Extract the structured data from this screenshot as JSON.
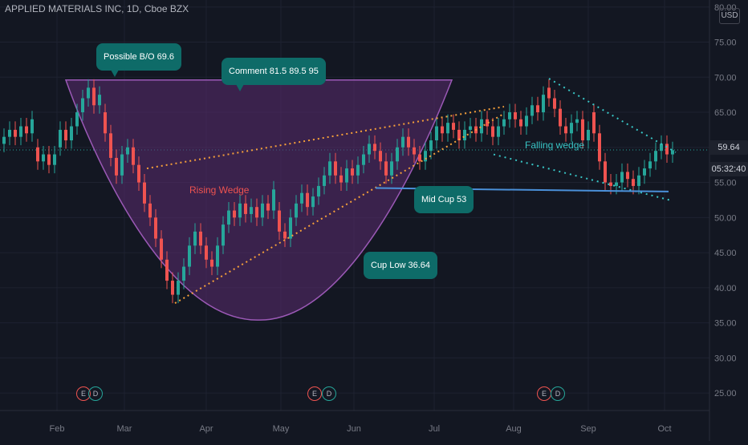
{
  "chart_title": "APPLIED MATERIALS INC, 1D, Cboe BZX",
  "currency": "USD",
  "last_price": "59.64",
  "countdown": "05:32:40",
  "chart_data": {
    "type": "candlestick",
    "y_ticks": [
      "80.00",
      "75.00",
      "70.00",
      "65.00",
      "60.00",
      "55.00",
      "50.00",
      "45.00",
      "40.00",
      "35.00",
      "30.00",
      "25.00"
    ],
    "ylim": [
      22.5,
      81
    ],
    "x_ticks": [
      "Feb",
      "Mar",
      "Apr",
      "May",
      "Jun",
      "Jul",
      "Aug",
      "Sep",
      "Oct"
    ],
    "candles_approx": [
      {
        "x": 5,
        "o": 60.5,
        "c": 61.5
      },
      {
        "x": 12,
        "o": 61.5,
        "c": 62.5
      },
      {
        "x": 19,
        "o": 62.5,
        "c": 61.5
      },
      {
        "x": 26,
        "o": 61.5,
        "c": 63
      },
      {
        "x": 33,
        "o": 63,
        "c": 62
      },
      {
        "x": 40,
        "o": 62,
        "c": 64
      },
      {
        "x": 47,
        "o": 60,
        "c": 58
      },
      {
        "x": 54,
        "o": 58,
        "c": 59
      },
      {
        "x": 61,
        "o": 59,
        "c": 57.5
      },
      {
        "x": 68,
        "o": 57.5,
        "c": 59
      },
      {
        "x": 75,
        "o": 60,
        "c": 62.5
      },
      {
        "x": 82,
        "o": 62.5,
        "c": 61
      },
      {
        "x": 89,
        "o": 61,
        "c": 63
      },
      {
        "x": 96,
        "o": 63,
        "c": 65
      },
      {
        "x": 103,
        "o": 65,
        "c": 67
      },
      {
        "x": 110,
        "o": 67,
        "c": 68.5
      },
      {
        "x": 117,
        "o": 68.5,
        "c": 66
      },
      {
        "x": 124,
        "o": 66,
        "c": 67.5
      },
      {
        "x": 131,
        "o": 65,
        "c": 62
      },
      {
        "x": 138,
        "o": 62,
        "c": 58.5
      },
      {
        "x": 145,
        "o": 58.5,
        "c": 56
      },
      {
        "x": 152,
        "o": 56,
        "c": 59
      },
      {
        "x": 159,
        "o": 59,
        "c": 60
      },
      {
        "x": 166,
        "o": 60,
        "c": 57.5
      },
      {
        "x": 173,
        "o": 57.5,
        "c": 55
      },
      {
        "x": 180,
        "o": 55,
        "c": 52
      },
      {
        "x": 187,
        "o": 52,
        "c": 50
      },
      {
        "x": 194,
        "o": 50,
        "c": 47
      },
      {
        "x": 201,
        "o": 47,
        "c": 44
      },
      {
        "x": 208,
        "o": 44,
        "c": 41
      },
      {
        "x": 215,
        "o": 41,
        "c": 39
      },
      {
        "x": 222,
        "o": 39,
        "c": 41
      },
      {
        "x": 229,
        "o": 41,
        "c": 43
      },
      {
        "x": 236,
        "o": 43,
        "c": 46
      },
      {
        "x": 243,
        "o": 46,
        "c": 48
      },
      {
        "x": 250,
        "o": 48,
        "c": 46
      },
      {
        "x": 257,
        "o": 46,
        "c": 44
      },
      {
        "x": 264,
        "o": 44,
        "c": 43
      },
      {
        "x": 271,
        "o": 43,
        "c": 46
      },
      {
        "x": 278,
        "o": 46,
        "c": 49
      },
      {
        "x": 285,
        "o": 49,
        "c": 51
      },
      {
        "x": 292,
        "o": 51,
        "c": 50
      },
      {
        "x": 299,
        "o": 50,
        "c": 52
      },
      {
        "x": 306,
        "o": 52,
        "c": 50.5
      },
      {
        "x": 313,
        "o": 50.5,
        "c": 51.5
      },
      {
        "x": 320,
        "o": 51.5,
        "c": 50
      },
      {
        "x": 327,
        "o": 50,
        "c": 52
      },
      {
        "x": 334,
        "o": 52,
        "c": 51
      },
      {
        "x": 341,
        "o": 51,
        "c": 54
      },
      {
        "x": 348,
        "o": 51,
        "c": 48
      },
      {
        "x": 355,
        "o": 48,
        "c": 47
      },
      {
        "x": 362,
        "o": 47,
        "c": 50
      },
      {
        "x": 369,
        "o": 50,
        "c": 52
      },
      {
        "x": 376,
        "o": 52,
        "c": 53.5
      },
      {
        "x": 383,
        "o": 53.5,
        "c": 51.5
      },
      {
        "x": 390,
        "o": 51.5,
        "c": 53
      },
      {
        "x": 397,
        "o": 53,
        "c": 54.5
      },
      {
        "x": 404,
        "o": 54.5,
        "c": 56
      },
      {
        "x": 411,
        "o": 56,
        "c": 58
      },
      {
        "x": 418,
        "o": 58,
        "c": 56
      },
      {
        "x": 425,
        "o": 56,
        "c": 55
      },
      {
        "x": 432,
        "o": 55,
        "c": 57
      },
      {
        "x": 439,
        "o": 57,
        "c": 56
      },
      {
        "x": 446,
        "o": 56,
        "c": 57.5
      },
      {
        "x": 453,
        "o": 57.5,
        "c": 59
      },
      {
        "x": 460,
        "o": 59,
        "c": 60.5
      },
      {
        "x": 467,
        "o": 60.5,
        "c": 59.5
      },
      {
        "x": 474,
        "o": 59.5,
        "c": 58
      },
      {
        "x": 481,
        "o": 58,
        "c": 56
      },
      {
        "x": 488,
        "o": 56,
        "c": 58
      },
      {
        "x": 495,
        "o": 58,
        "c": 60
      },
      {
        "x": 502,
        "o": 60,
        "c": 61.5
      },
      {
        "x": 509,
        "o": 61.5,
        "c": 60
      },
      {
        "x": 516,
        "o": 60,
        "c": 59
      },
      {
        "x": 523,
        "o": 59,
        "c": 58
      },
      {
        "x": 530,
        "o": 58,
        "c": 59.5
      },
      {
        "x": 537,
        "o": 59.5,
        "c": 61
      },
      {
        "x": 544,
        "o": 61,
        "c": 63
      },
      {
        "x": 551,
        "o": 63,
        "c": 62
      },
      {
        "x": 558,
        "o": 62,
        "c": 63.5
      },
      {
        "x": 565,
        "o": 63.5,
        "c": 62.5
      },
      {
        "x": 572,
        "o": 62.5,
        "c": 61
      },
      {
        "x": 579,
        "o": 61,
        "c": 62.5
      },
      {
        "x": 586,
        "o": 62.5,
        "c": 63
      },
      {
        "x": 593,
        "o": 63,
        "c": 62
      },
      {
        "x": 600,
        "o": 62,
        "c": 64
      },
      {
        "x": 607,
        "o": 64,
        "c": 63
      },
      {
        "x": 614,
        "o": 63,
        "c": 61.5
      },
      {
        "x": 621,
        "o": 61.5,
        "c": 63
      },
      {
        "x": 628,
        "o": 63,
        "c": 64
      },
      {
        "x": 635,
        "o": 64,
        "c": 65
      },
      {
        "x": 642,
        "o": 65,
        "c": 64
      },
      {
        "x": 649,
        "o": 64,
        "c": 63
      },
      {
        "x": 656,
        "o": 63,
        "c": 64.5
      },
      {
        "x": 663,
        "o": 64.5,
        "c": 66
      },
      {
        "x": 670,
        "o": 66,
        "c": 65
      },
      {
        "x": 677,
        "o": 65,
        "c": 67.5
      },
      {
        "x": 684,
        "o": 68.5,
        "c": 67
      },
      {
        "x": 691,
        "o": 67,
        "c": 65.5
      },
      {
        "x": 698,
        "o": 65.5,
        "c": 63
      },
      {
        "x": 705,
        "o": 63,
        "c": 62
      },
      {
        "x": 712,
        "o": 62,
        "c": 63.5
      },
      {
        "x": 719,
        "o": 63.5,
        "c": 64
      },
      {
        "x": 726,
        "o": 64,
        "c": 61
      },
      {
        "x": 733,
        "o": 61,
        "c": 62.5
      },
      {
        "x": 740,
        "o": 65,
        "c": 62
      },
      {
        "x": 747,
        "o": 62,
        "c": 58
      },
      {
        "x": 754,
        "o": 58,
        "c": 55
      },
      {
        "x": 761,
        "o": 55,
        "c": 54.5
      },
      {
        "x": 768,
        "o": 54.5,
        "c": 55
      },
      {
        "x": 775,
        "o": 55,
        "c": 56.5
      },
      {
        "x": 782,
        "o": 56.5,
        "c": 55.5
      },
      {
        "x": 789,
        "o": 55.5,
        "c": 54.5
      },
      {
        "x": 796,
        "o": 54.5,
        "c": 56
      },
      {
        "x": 803,
        "o": 56,
        "c": 57
      },
      {
        "x": 810,
        "o": 57,
        "c": 58
      },
      {
        "x": 817,
        "o": 58,
        "c": 59.5
      },
      {
        "x": 824,
        "o": 59.5,
        "c": 60.5
      },
      {
        "x": 831,
        "o": 60.5,
        "c": 59
      },
      {
        "x": 838,
        "o": 59,
        "c": 59.6
      }
    ]
  },
  "annotations": {
    "possible_bo": "Possible B/O  69.6",
    "comment": "Comment  81.5   89.5   95",
    "mid_cup": "Mid Cup   53",
    "cup_low": "Cup Low   36.64",
    "rising_wedge": "Rising Wedge",
    "falling_wedge": "Falling wedge"
  },
  "earnings": [
    {
      "e": "E",
      "d": "D"
    },
    {
      "e": "E",
      "d": "D"
    },
    {
      "e": "E",
      "d": "D"
    }
  ],
  "colors": {
    "up": "#26a69a",
    "down": "#ef5350",
    "cup_fill": "#5b2c6f",
    "wedge": "#f6a03a",
    "falling_wedge": "#38c6c6",
    "support": "#4a90d9"
  }
}
